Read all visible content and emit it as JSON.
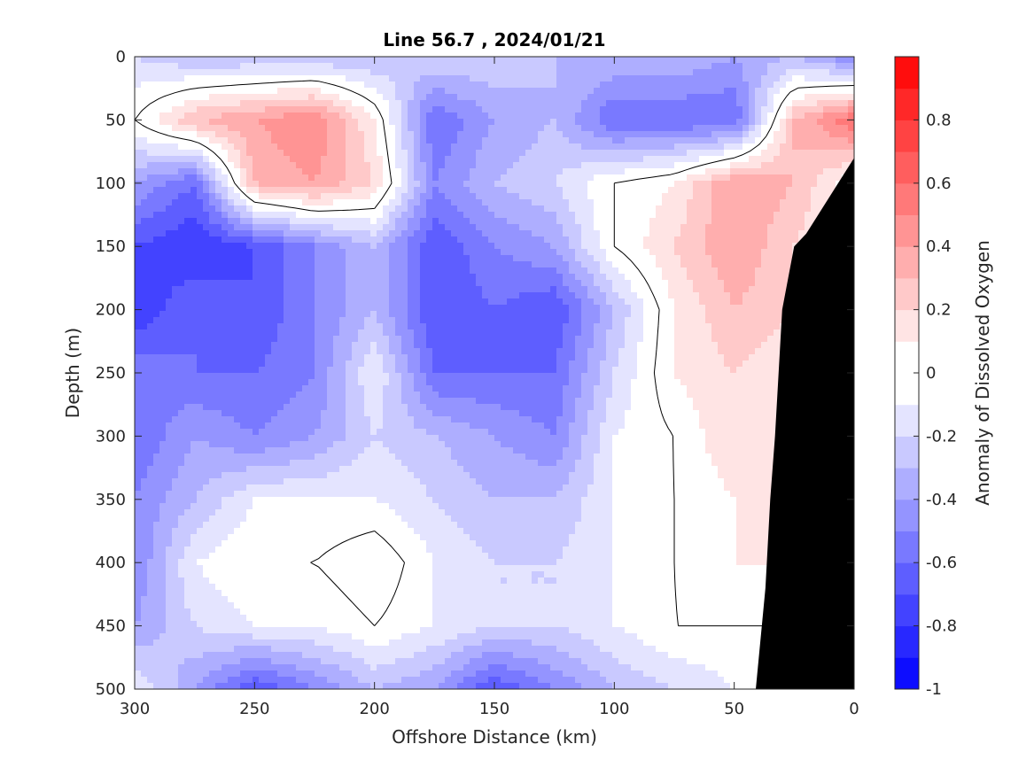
{
  "chart_data": {
    "type": "heatmap",
    "title": "Line 56.7 , 2024/01/21",
    "xlabel": "Offshore Distance (km)",
    "ylabel": "Depth (m)",
    "colorbar_label": "Anomaly of Dissolved Oxygen",
    "xlim": [
      300,
      0
    ],
    "ylim": [
      500,
      0
    ],
    "x_reversed": true,
    "y_reversed": true,
    "xticks": [
      "300",
      "250",
      "200",
      "150",
      "100",
      "50",
      "0"
    ],
    "yticks": [
      "0",
      "50",
      "100",
      "150",
      "200",
      "250",
      "300",
      "350",
      "400",
      "450",
      "500"
    ],
    "colorbar_ticks": [
      "0.8",
      "0.6",
      "0.4",
      "0.2",
      "0",
      "-0.2",
      "-0.4",
      "-0.6",
      "-0.8",
      "-1"
    ],
    "colorbar_range": [
      -1,
      1
    ],
    "colorbar_levels": 20,
    "colormap": "blue-white-red",
    "color_low": "#0000ff",
    "color_mid": "#ffffff",
    "color_high": "#ff0000",
    "topography_color": "#000000",
    "contour_line_level": 0,
    "grid": false,
    "field": {
      "x_km": [
        300,
        275,
        250,
        225,
        200,
        175,
        150,
        125,
        100,
        75,
        50,
        25,
        0
      ],
      "depth_m": [
        0,
        50,
        100,
        150,
        200,
        250,
        300,
        350,
        400,
        450,
        500
      ],
      "values": [
        [
          -0.2,
          -0.3,
          -0.3,
          -0.3,
          -0.3,
          -0.2,
          -0.2,
          -0.3,
          -0.3,
          -0.3,
          -0.4,
          -0.3,
          -0.5
        ],
        [
          0.0,
          0.3,
          0.4,
          0.5,
          0.1,
          -0.6,
          -0.4,
          -0.3,
          -0.6,
          -0.6,
          -0.6,
          0.3,
          0.6
        ],
        [
          -0.4,
          -0.6,
          0.3,
          0.4,
          0.2,
          -0.5,
          -0.3,
          -0.2,
          0.0,
          0.1,
          0.4,
          0.3,
          0.0
        ],
        [
          -0.7,
          -0.8,
          -0.7,
          -0.5,
          -0.3,
          -0.7,
          -0.5,
          -0.4,
          0.0,
          0.2,
          0.4,
          0.2,
          0.0
        ],
        [
          -0.8,
          -0.6,
          -0.7,
          -0.5,
          -0.3,
          -0.7,
          -0.6,
          -0.7,
          -0.3,
          0.1,
          0.3,
          0.2,
          0.0
        ],
        [
          -0.5,
          -0.6,
          -0.6,
          -0.5,
          -0.1,
          -0.6,
          -0.6,
          -0.6,
          -0.2,
          0.1,
          0.2,
          0.1,
          0.0
        ],
        [
          -0.6,
          -0.4,
          -0.5,
          -0.4,
          -0.2,
          -0.3,
          -0.4,
          -0.5,
          -0.1,
          0.0,
          0.2,
          0.1,
          0.0
        ],
        [
          -0.5,
          -0.3,
          -0.1,
          -0.1,
          -0.1,
          -0.2,
          -0.3,
          -0.3,
          -0.1,
          0.0,
          0.1,
          0.1,
          0.0
        ],
        [
          -0.5,
          -0.1,
          0.0,
          0.0,
          0.1,
          -0.1,
          -0.2,
          -0.2,
          -0.1,
          0.0,
          0.1,
          0.1,
          0.0
        ],
        [
          -0.4,
          -0.2,
          -0.1,
          -0.1,
          0.0,
          -0.1,
          -0.2,
          -0.2,
          -0.1,
          0.0,
          0.0,
          0.0,
          0.0
        ],
        [
          -0.1,
          -0.4,
          -0.7,
          -0.5,
          -0.3,
          -0.4,
          -0.7,
          -0.5,
          -0.3,
          -0.2,
          -0.1,
          0.0,
          0.0
        ]
      ]
    },
    "topography": [
      [
        0,
        0
      ],
      [
        0,
        80
      ],
      [
        10,
        110
      ],
      [
        20,
        140
      ],
      [
        25,
        150
      ],
      [
        30,
        200
      ],
      [
        33,
        300
      ],
      [
        35,
        350
      ],
      [
        37,
        420
      ],
      [
        41,
        500
      ]
    ]
  }
}
